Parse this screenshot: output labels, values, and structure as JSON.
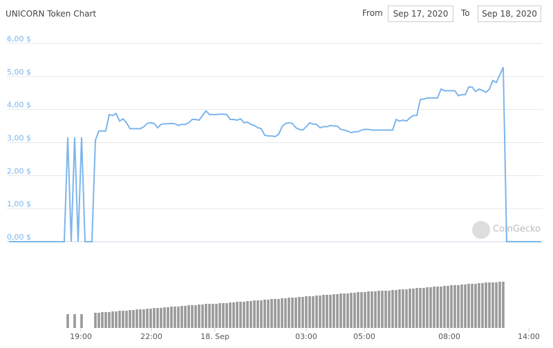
{
  "header": {
    "title": "UNICORN Token Chart",
    "from_label": "From",
    "from_date": "Sep 17, 2020",
    "to_label": "To",
    "to_date": "Sep 18, 2020"
  },
  "chart_data": [
    {
      "type": "line",
      "watermark": "CoinGecko",
      "color": "#7cb5ec",
      "grid": true,
      "ylim": [
        0,
        6
      ],
      "yticks": [
        {
          "value": 0,
          "label": "0,00 $"
        },
        {
          "value": 1,
          "label": "1,00 $"
        },
        {
          "value": 2,
          "label": "2,00 $"
        },
        {
          "value": 3,
          "label": "3,00 $"
        },
        {
          "value": 4,
          "label": "4,00 $"
        },
        {
          "value": 5,
          "label": "5,00 $"
        },
        {
          "value": 6,
          "label": "6,00 $"
        }
      ],
      "xlim": [
        -0.6,
        154.4
      ],
      "values": [
        0,
        0,
        0,
        0,
        0,
        0,
        0,
        0,
        0,
        0,
        0,
        0,
        0,
        0,
        0,
        0,
        0,
        3.16,
        0,
        3.16,
        0,
        3.16,
        0,
        0,
        0,
        3.07,
        3.35,
        3.35,
        3.35,
        3.85,
        3.82,
        3.88,
        3.65,
        3.72,
        3.6,
        3.42,
        3.42,
        3.42,
        3.42,
        3.48,
        3.58,
        3.6,
        3.58,
        3.45,
        3.55,
        3.57,
        3.57,
        3.58,
        3.57,
        3.52,
        3.55,
        3.55,
        3.6,
        3.7,
        3.7,
        3.68,
        3.82,
        3.96,
        3.85,
        3.85,
        3.85,
        3.86,
        3.86,
        3.85,
        3.7,
        3.7,
        3.68,
        3.72,
        3.6,
        3.62,
        3.55,
        3.52,
        3.45,
        3.42,
        3.22,
        3.2,
        3.2,
        3.18,
        3.25,
        3.48,
        3.58,
        3.6,
        3.58,
        3.45,
        3.4,
        3.38,
        3.48,
        3.6,
        3.56,
        3.55,
        3.45,
        3.48,
        3.48,
        3.52,
        3.5,
        3.5,
        3.4,
        3.38,
        3.35,
        3.3,
        3.33,
        3.33,
        3.38,
        3.4,
        3.4,
        3.38,
        3.38,
        3.38,
        3.38,
        3.38,
        3.38,
        3.38,
        3.7,
        3.65,
        3.68,
        3.65,
        3.75,
        3.82,
        3.82,
        4.3,
        4.32,
        4.35,
        4.35,
        4.35,
        4.35,
        4.62,
        4.57,
        4.57,
        4.57,
        4.57,
        4.42,
        4.45,
        4.45,
        4.68,
        4.68,
        4.55,
        4.62,
        4.58,
        4.52,
        4.62,
        4.88,
        4.82,
        5.05,
        5.28,
        0,
        0,
        0,
        0,
        0,
        0,
        0,
        0,
        0,
        0,
        0
      ]
    },
    {
      "type": "bar",
      "color": "#999999",
      "ylim": [
        0,
        70
      ],
      "xlim": [
        -0.6,
        154.4
      ],
      "xticks": [
        {
          "value": 20.8,
          "label": "19:00"
        },
        {
          "value": 41.2,
          "label": "22:00"
        },
        {
          "value": 59.6,
          "label": "18. Sep"
        },
        {
          "value": 86,
          "label": "03:00"
        },
        {
          "value": 102.8,
          "label": "05:00"
        },
        {
          "value": 127.4,
          "label": "08:00"
        },
        {
          "value": 150.4,
          "label": "14:00"
        }
      ],
      "values": [
        null,
        null,
        null,
        null,
        null,
        null,
        null,
        null,
        null,
        null,
        null,
        null,
        null,
        null,
        null,
        null,
        null,
        20,
        null,
        20,
        null,
        20,
        null,
        null,
        null,
        22,
        22,
        23,
        23,
        23,
        24,
        24,
        25,
        25,
        25,
        26,
        26,
        27,
        27,
        27,
        28,
        28,
        29,
        29,
        29,
        30,
        30,
        31,
        31,
        31,
        32,
        32,
        33,
        33,
        33,
        34,
        34,
        35,
        35,
        35,
        35,
        36,
        36,
        36,
        37,
        37,
        38,
        38,
        38,
        39,
        39,
        40,
        40,
        40,
        41,
        41,
        42,
        42,
        42,
        43,
        43,
        44,
        44,
        44,
        45,
        45,
        46,
        46,
        46,
        47,
        47,
        48,
        48,
        48,
        49,
        49,
        50,
        50,
        50,
        51,
        51,
        52,
        52,
        52,
        53,
        53,
        53,
        54,
        54,
        54,
        54,
        55,
        55,
        56,
        56,
        56,
        57,
        57,
        58,
        58,
        58,
        59,
        59,
        60,
        60,
        60,
        61,
        61,
        62,
        62,
        62,
        63,
        63,
        64,
        64,
        64,
        65,
        65,
        66,
        66,
        66,
        66,
        67,
        67,
        null,
        null,
        null,
        null,
        null,
        null,
        null,
        null,
        null,
        null,
        null
      ]
    }
  ]
}
